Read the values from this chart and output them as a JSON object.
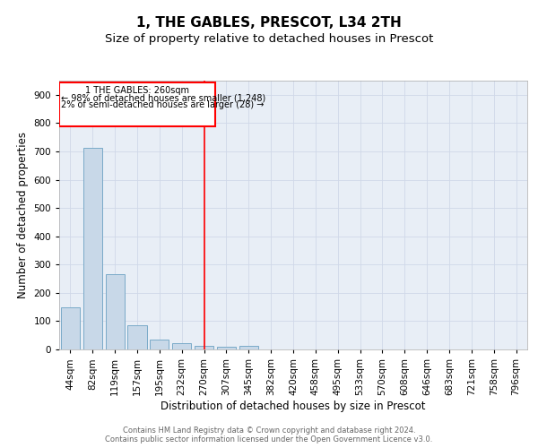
{
  "title": "1, THE GABLES, PRESCOT, L34 2TH",
  "subtitle": "Size of property relative to detached houses in Prescot",
  "xlabel": "Distribution of detached houses by size in Prescot",
  "ylabel": "Number of detached properties",
  "bar_color": "#c8d8e8",
  "bar_edge_color": "#7aaac8",
  "categories": [
    "44sqm",
    "82sqm",
    "119sqm",
    "157sqm",
    "195sqm",
    "232sqm",
    "270sqm",
    "307sqm",
    "345sqm",
    "382sqm",
    "420sqm",
    "458sqm",
    "495sqm",
    "533sqm",
    "570sqm",
    "608sqm",
    "646sqm",
    "683sqm",
    "721sqm",
    "758sqm",
    "796sqm"
  ],
  "values": [
    148,
    712,
    265,
    84,
    35,
    21,
    13,
    8,
    12,
    0,
    0,
    0,
    0,
    0,
    0,
    0,
    0,
    0,
    0,
    0,
    0
  ],
  "ylim": [
    0,
    950
  ],
  "yticks": [
    0,
    100,
    200,
    300,
    400,
    500,
    600,
    700,
    800,
    900
  ],
  "marker_idx": 6,
  "marker_label_line1": "1 THE GABLES: 260sqm",
  "marker_label_line2": "← 98% of detached houses are smaller (1,248)",
  "marker_label_line3": "2% of semi-detached houses are larger (28) →",
  "grid_color": "#d0d8e8",
  "background_color": "#e8eef6",
  "footer_line1": "Contains HM Land Registry data © Crown copyright and database right 2024.",
  "footer_line2": "Contains public sector information licensed under the Open Government Licence v3.0.",
  "title_fontsize": 11,
  "subtitle_fontsize": 9.5,
  "tick_fontsize": 7.5,
  "label_fontsize": 8.5,
  "footer_fontsize": 6.0
}
